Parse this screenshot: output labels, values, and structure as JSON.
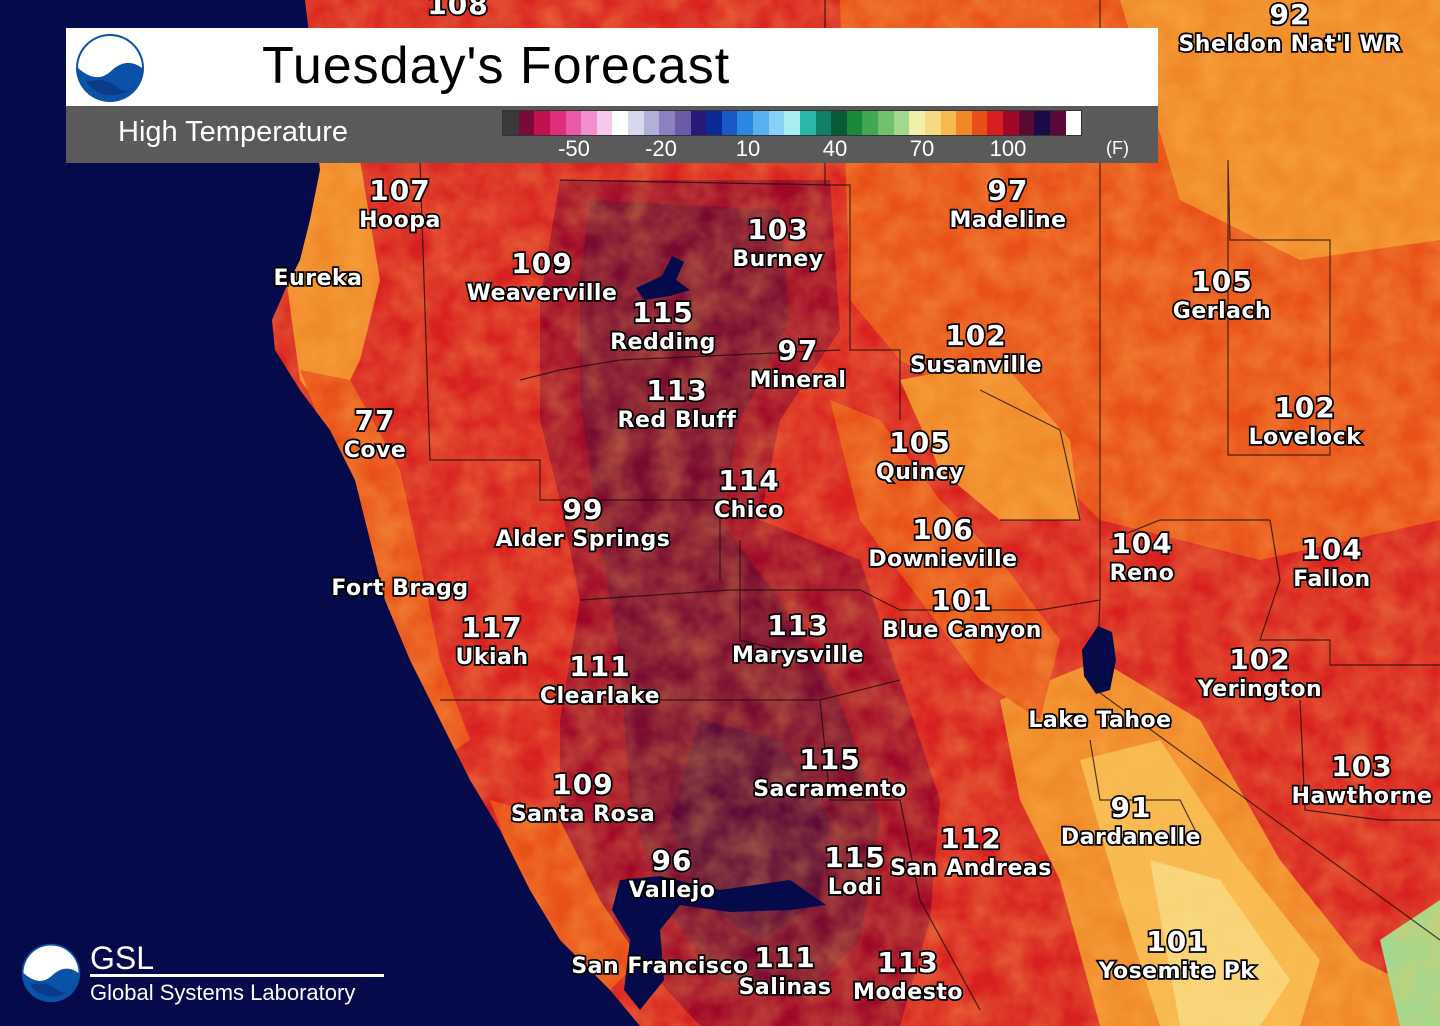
{
  "header": {
    "title": "Tuesday's Forecast",
    "subtitle": "High Temperature",
    "unit": "(F)",
    "colorbar_ticks": [
      "-50",
      "-20",
      "10",
      "40",
      "70",
      "100"
    ],
    "colorbar_colors": [
      "#3a3a3a",
      "#7a0a3a",
      "#c0124e",
      "#e02e7a",
      "#e85aa8",
      "#f08ed0",
      "#f8c8ec",
      "#ffffff",
      "#d8d8ec",
      "#b0b0d8",
      "#8c80c0",
      "#6a5aa8",
      "#2a1a78",
      "#0a2a98",
      "#1a58c8",
      "#2a88e0",
      "#58b0f0",
      "#88d0f8",
      "#a8eef0",
      "#28b8a8",
      "#10806a",
      "#0a5a3a",
      "#1a8a3a",
      "#40a850",
      "#70c070",
      "#a0d890",
      "#f0f0a8",
      "#f8d880",
      "#f8b850",
      "#f08828",
      "#e85018",
      "#d82020",
      "#a00828",
      "#5a0a30",
      "#1a0a48",
      "#5a0a38",
      "#ffffff"
    ]
  },
  "logos": {
    "noaa_text": "NOAA",
    "gsl_short": "GSL",
    "gsl_long": "Global Systems Laboratory"
  },
  "cities": [
    {
      "name": "Hoopa",
      "temp": "107"
    },
    {
      "name": "Weaverville",
      "temp": "109"
    },
    {
      "name": "Burney",
      "temp": "103"
    },
    {
      "name": "Redding",
      "temp": "115"
    },
    {
      "name": "Madeline",
      "temp": "97"
    },
    {
      "name": "Gerlach",
      "temp": "105"
    },
    {
      "name": "Susanville",
      "temp": "102"
    },
    {
      "name": "Mineral",
      "temp": "97"
    },
    {
      "name": "Red Bluff",
      "temp": "113"
    },
    {
      "name": "Lovelock",
      "temp": "102"
    },
    {
      "name": "Cove",
      "temp": "77"
    },
    {
      "name": "Quincy",
      "temp": "105"
    },
    {
      "name": "Chico",
      "temp": "114"
    },
    {
      "name": "Alder Springs",
      "temp": "99"
    },
    {
      "name": "Downieville",
      "temp": "106"
    },
    {
      "name": "Reno",
      "temp": "104"
    },
    {
      "name": "Fallon",
      "temp": "104"
    },
    {
      "name": "Blue Canyon",
      "temp": "101"
    },
    {
      "name": "Ukiah",
      "temp": "117"
    },
    {
      "name": "Marysville",
      "temp": "113"
    },
    {
      "name": "Clearlake",
      "temp": "111"
    },
    {
      "name": "Yerington",
      "temp": "102"
    },
    {
      "name": "Lake Tahoe",
      "temp": ""
    },
    {
      "name": "Sacramento",
      "temp": "115"
    },
    {
      "name": "Hawthorne",
      "temp": "103"
    },
    {
      "name": "Santa Rosa",
      "temp": "109"
    },
    {
      "name": "Dardanelle",
      "temp": "91"
    },
    {
      "name": "San Andreas",
      "temp": "112"
    },
    {
      "name": "Lodi",
      "temp": "115"
    },
    {
      "name": "Vallejo",
      "temp": "96"
    },
    {
      "name": "Yosemite Pk",
      "temp": "101"
    },
    {
      "name": "Salinas",
      "temp": "111"
    },
    {
      "name": "Modesto",
      "temp": "113"
    },
    {
      "name": "Sheldon Nat'l WR",
      "temp": "92"
    },
    {
      "name": "San Francisco",
      "temp": ""
    },
    {
      "name": "Eureka",
      "temp": ""
    },
    {
      "name": "Fort Bragg",
      "temp": ""
    },
    {
      "name": "",
      "temp": "108"
    }
  ],
  "colors": {
    "ocean": "#040a4a",
    "hot_base": "#d82020",
    "very_hot": "#a00828",
    "extreme": "#7a0a30",
    "warm": "#e85018",
    "mild": "#f08828",
    "cool": "#f8d880"
  }
}
